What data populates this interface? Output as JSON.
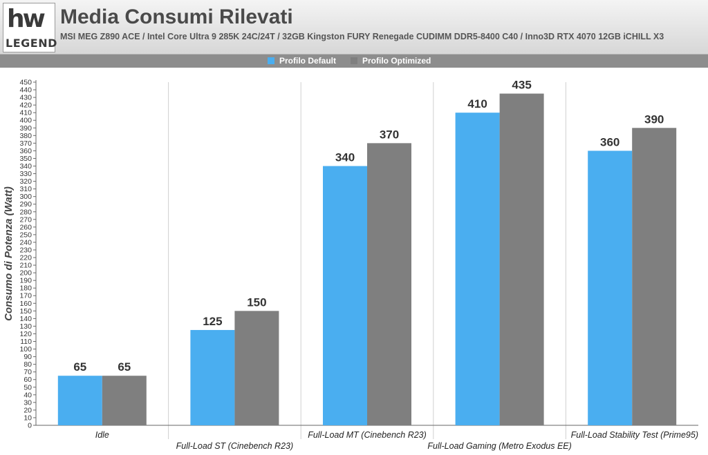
{
  "header": {
    "logo_mark": "hw",
    "logo_text": "LEGEND",
    "title": "Media Consumi Rilevati",
    "subtitle": "MSI MEG Z890 ACE / Intel Core Ultra 9 285K 24C/24T / 32GB Kingston FURY Renegade CUDIMM DDR5-8400 C40 / Inno3D RTX 4070 12GB iCHILL X3"
  },
  "legend": {
    "items": [
      {
        "label": "Profilo Default",
        "color": "#4aaef0"
      },
      {
        "label": "Profilo Optimized",
        "color": "#7f7f7f"
      }
    ],
    "placement": "top-center"
  },
  "chart_data": {
    "type": "bar",
    "title": "Media Consumi Rilevati",
    "ylabel": "Consumo di Potenza (Watt)",
    "xlabel": "",
    "ylim": [
      0,
      450
    ],
    "ytick_step": 10,
    "grid": "vertical category separators",
    "categories": [
      "Idle",
      "Full-Load ST (Cinebench R23)",
      "Full-Load MT (Cinebench R23)",
      "Full-Load Gaming (Metro Exodus EE)",
      "Full-Load Stability Test (Prime95)"
    ],
    "series": [
      {
        "name": "Profilo Default",
        "color": "#4aaef0",
        "values": [
          65,
          125,
          340,
          410,
          360
        ]
      },
      {
        "name": "Profilo Optimized",
        "color": "#7f7f7f",
        "values": [
          65,
          150,
          370,
          435,
          390
        ]
      }
    ]
  }
}
